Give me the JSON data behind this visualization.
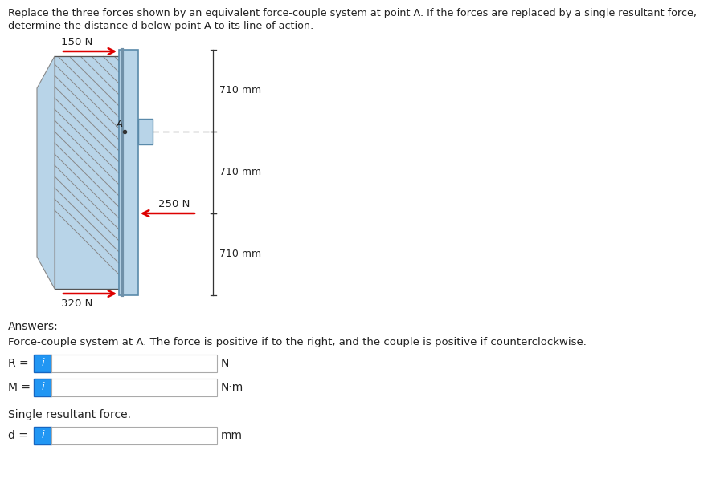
{
  "title_line1": "Replace the three forces shown by an equivalent force-couple system at point A. If the forces are replaced by a single resultant force,",
  "title_line2": "determine the distance d below point A to its line of action.",
  "force1_label": "150 N",
  "force2_label": "250 N",
  "force3_label": "320 N",
  "dim1_label": "710 mm",
  "dim2_label": "710 mm",
  "dim3_label": "710 mm",
  "point_label": "A",
  "answers_label": "Answers:",
  "fcs_label": "Force-couple system at A. The force is positive if to the right, and the couple is positive if counterclockwise.",
  "R_label": "R =",
  "M_label": "M =",
  "d_label": "d =",
  "N_label": "N",
  "Nm_label": "N·m",
  "mm_label": "mm",
  "single_label": "Single resultant force.",
  "i_label": "i",
  "arrow_color": "#dd0000",
  "beam_fill": "#b8d4e8",
  "beam_edge": "#5a8aaa",
  "wall_fill": "#b8d4e8",
  "wall_hatch": "#888888",
  "box_fill": "#2196F3",
  "box_border": "#1565C0",
  "bg_color": "#ffffff",
  "dim_color": "#333333",
  "text_color": "#222222"
}
